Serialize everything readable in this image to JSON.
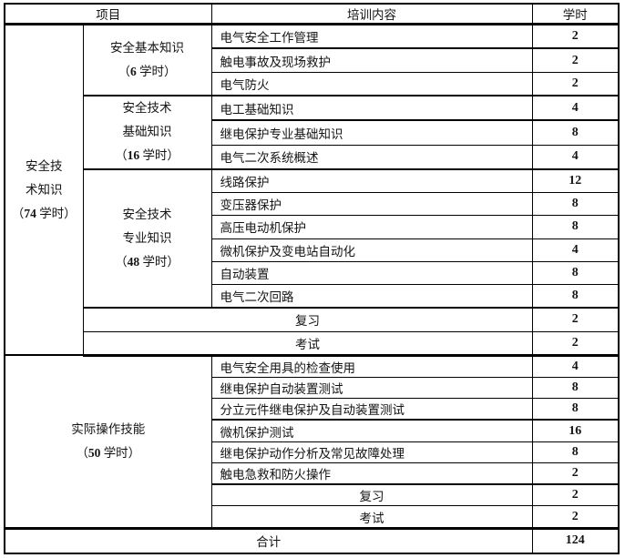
{
  "header": {
    "project": "项目",
    "content": "培训内容",
    "hours": "学时"
  },
  "section1": {
    "side": {
      "l1": "安全技",
      "l2": "术知识",
      "p_open": "（",
      "p_num": "74",
      "p_close": " 学时）"
    },
    "cat1": {
      "l1": "安全基本知识",
      "p_open": "（",
      "p_num": "6",
      "p_close": " 学时）"
    },
    "cat2": {
      "l1": "安全技术",
      "l2": "基础知识",
      "p_open": "（",
      "p_num": "16",
      "p_close": " 学时）"
    },
    "cat3": {
      "l1": "安全技术",
      "l2": "专业知识",
      "p_open": "（",
      "p_num": "48",
      "p_close": " 学时）"
    },
    "g1": [
      {
        "text": "电气安全工作管理",
        "hours": "2"
      },
      {
        "text": "触电事故及现场救护",
        "hours": "2"
      },
      {
        "text": "电气防火",
        "hours": "2"
      }
    ],
    "g2": [
      {
        "text": "电工基础知识",
        "hours": "4"
      },
      {
        "text": "继电保护专业基础知识",
        "hours": "8"
      },
      {
        "text": "电气二次系统概述",
        "hours": "4"
      }
    ],
    "g3": [
      {
        "text": "线路保护",
        "hours": "12"
      },
      {
        "text": "变压器保护",
        "hours": "8"
      },
      {
        "text": "高压电动机保护",
        "hours": "8"
      },
      {
        "text": "微机保护及变电站自动化",
        "hours": "4"
      },
      {
        "text": "自动装置",
        "hours": "8"
      },
      {
        "text": "电气二次回路",
        "hours": "8"
      }
    ],
    "review": {
      "text": "复习",
      "hours": "2"
    },
    "exam": {
      "text": "考试",
      "hours": "2"
    }
  },
  "section2": {
    "side": {
      "l1": "实际操作技能",
      "p_open": "（",
      "p_num": "50",
      "p_close": " 学时）"
    },
    "items": [
      {
        "text": "电气安全用具的检查使用",
        "hours": "4"
      },
      {
        "text": "继电保护自动装置测试",
        "hours": "8"
      },
      {
        "text": "分立元件继电保护及自动装置测试",
        "hours": "8"
      },
      {
        "text": "微机保护测试",
        "hours": "16"
      },
      {
        "text": "继电保护动作分析及常见故障处理",
        "hours": "8"
      },
      {
        "text": "触电急救和防火操作",
        "hours": "2"
      }
    ],
    "review": {
      "text": "复习",
      "hours": "2"
    },
    "exam": {
      "text": "考试",
      "hours": "2"
    }
  },
  "total": {
    "label": "合计",
    "hours": "124"
  }
}
